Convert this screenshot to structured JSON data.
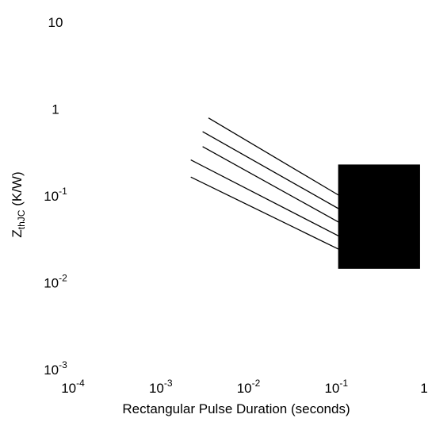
{
  "chart_data": {
    "type": "line",
    "xlabel": "Rectangular Pulse Duration (seconds)",
    "ylabel": {
      "main": "Z",
      "sub": "thJC",
      "unit": " (K/W)"
    },
    "x_scale": "log",
    "y_scale": "log",
    "xlim": [
      0.0001,
      1
    ],
    "ylim": [
      0.001,
      10
    ],
    "grid": false,
    "x_ticks": [
      {
        "value": 0.0001,
        "base": "10",
        "exp": "-4"
      },
      {
        "value": 0.001,
        "base": "10",
        "exp": "-3"
      },
      {
        "value": 0.01,
        "base": "10",
        "exp": "-2"
      },
      {
        "value": 0.1,
        "base": "10",
        "exp": "-1"
      },
      {
        "value": 1,
        "base": "1",
        "exp": ""
      }
    ],
    "y_ticks": [
      {
        "value": 0.001,
        "base": "10",
        "exp": "-3"
      },
      {
        "value": 0.01,
        "base": "10",
        "exp": "-2"
      },
      {
        "value": 0.1,
        "base": "10",
        "exp": "-1"
      },
      {
        "value": 1,
        "base": "1",
        "exp": ""
      },
      {
        "value": 10,
        "base": "10",
        "exp": ""
      }
    ],
    "series": [
      {
        "x": [
          0.0035,
          0.11
        ],
        "y": [
          0.79,
          0.1
        ]
      },
      {
        "x": [
          0.003,
          0.11
        ],
        "y": [
          0.55,
          0.07
        ]
      },
      {
        "x": [
          0.003,
          0.11
        ],
        "y": [
          0.37,
          0.049
        ]
      },
      {
        "x": [
          0.0022,
          0.11
        ],
        "y": [
          0.26,
          0.034
        ]
      },
      {
        "x": [
          0.0022,
          0.11
        ],
        "y": [
          0.165,
          0.024
        ]
      }
    ],
    "filled_region": {
      "x": [
        0.105,
        0.9
      ],
      "y": [
        0.0145,
        0.23
      ]
    },
    "colors": {
      "line": "#000000",
      "fill": "#000000",
      "background": "#ffffff"
    }
  }
}
